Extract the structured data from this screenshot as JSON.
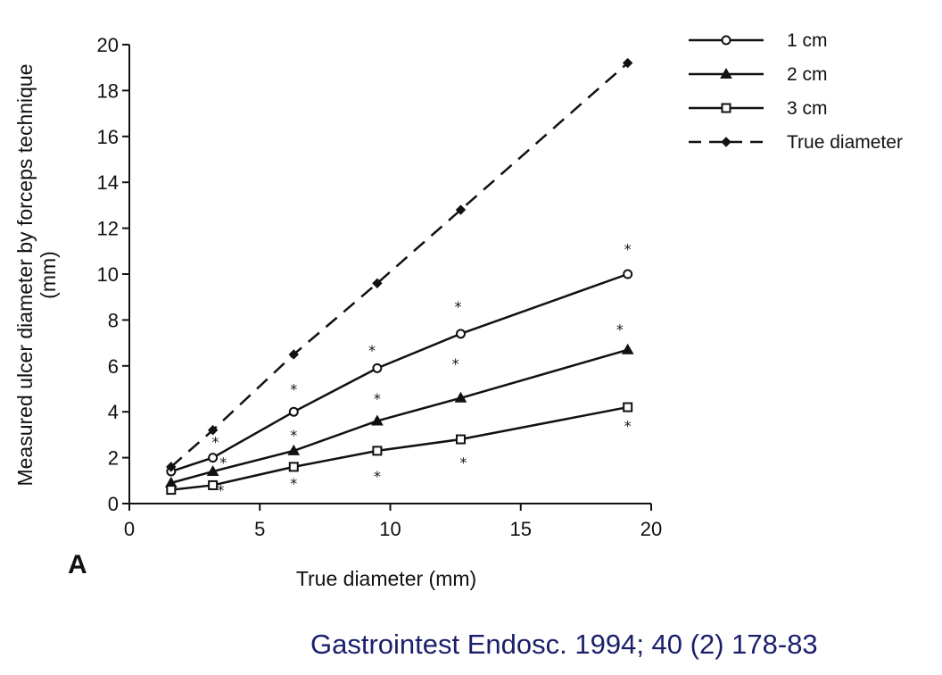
{
  "chart_data": {
    "type": "line",
    "panel_label": "A",
    "xlabel": "True diameter (mm)",
    "ylabel_lines": [
      "Measured ulcer diameter by forceps technique",
      "(mm)"
    ],
    "xlim": [
      0,
      20
    ],
    "ylim": [
      0,
      20
    ],
    "xticks": [
      0,
      5,
      10,
      15,
      20
    ],
    "yticks": [
      0,
      2,
      4,
      6,
      8,
      10,
      12,
      14,
      16,
      18,
      20
    ],
    "legend_position": "top-right",
    "series": [
      {
        "name": "1 cm",
        "marker": "open-circle",
        "dash": "solid",
        "x": [
          1.6,
          3.2,
          6.3,
          9.5,
          12.7,
          19.1
        ],
        "y": [
          1.4,
          2.0,
          4.0,
          5.9,
          7.4,
          10.0
        ]
      },
      {
        "name": "2 cm",
        "marker": "filled-triangle",
        "dash": "solid",
        "x": [
          1.6,
          3.2,
          6.3,
          9.5,
          12.7,
          19.1
        ],
        "y": [
          0.9,
          1.4,
          2.3,
          3.6,
          4.6,
          6.7
        ]
      },
      {
        "name": "3 cm",
        "marker": "open-square",
        "dash": "solid",
        "x": [
          1.6,
          3.2,
          6.3,
          9.5,
          12.7,
          19.1
        ],
        "y": [
          0.6,
          0.8,
          1.6,
          2.3,
          2.8,
          4.2
        ]
      },
      {
        "name": "True diameter",
        "marker": "filled-diamond",
        "dash": "dashed",
        "x": [
          1.6,
          3.2,
          6.3,
          9.5,
          12.7,
          19.1
        ],
        "y": [
          1.6,
          3.2,
          6.5,
          9.6,
          12.8,
          19.2
        ]
      }
    ],
    "significance_marks": [
      {
        "x": 3.3,
        "y": 2.7,
        "text": "*"
      },
      {
        "x": 3.6,
        "y": 1.8,
        "text": "*"
      },
      {
        "x": 3.5,
        "y": 0.6,
        "text": "*"
      },
      {
        "x": 6.3,
        "y": 5.0,
        "text": "*"
      },
      {
        "x": 6.3,
        "y": 3.0,
        "text": "*"
      },
      {
        "x": 6.3,
        "y": 0.9,
        "text": "*"
      },
      {
        "x": 9.3,
        "y": 6.7,
        "text": "*"
      },
      {
        "x": 9.5,
        "y": 4.6,
        "text": "*"
      },
      {
        "x": 9.5,
        "y": 1.2,
        "text": "*"
      },
      {
        "x": 12.6,
        "y": 8.6,
        "text": "*"
      },
      {
        "x": 12.5,
        "y": 6.1,
        "text": "*"
      },
      {
        "x": 12.8,
        "y": 1.8,
        "text": "*"
      },
      {
        "x": 19.1,
        "y": 11.1,
        "text": "*"
      },
      {
        "x": 18.8,
        "y": 7.6,
        "text": "*"
      },
      {
        "x": 19.1,
        "y": 3.4,
        "text": "*"
      }
    ]
  },
  "citation": "Gastrointest Endosc. 1994; 40 (2) 178-83",
  "colors": {
    "ink": "#111111",
    "citation": "#1a1f6b",
    "background": "#ffffff"
  }
}
